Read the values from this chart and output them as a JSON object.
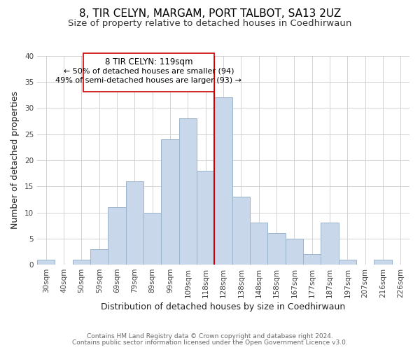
{
  "title": "8, TIR CELYN, MARGAM, PORT TALBOT, SA13 2UZ",
  "subtitle": "Size of property relative to detached houses in Coedhirwaun",
  "xlabel": "Distribution of detached houses by size in Coedhirwaun",
  "ylabel": "Number of detached properties",
  "footer_line1": "Contains HM Land Registry data © Crown copyright and database right 2024.",
  "footer_line2": "Contains public sector information licensed under the Open Government Licence v3.0.",
  "bar_labels": [
    "30sqm",
    "40sqm",
    "50sqm",
    "59sqm",
    "69sqm",
    "79sqm",
    "89sqm",
    "99sqm",
    "109sqm",
    "118sqm",
    "128sqm",
    "138sqm",
    "148sqm",
    "158sqm",
    "167sqm",
    "177sqm",
    "187sqm",
    "197sqm",
    "207sqm",
    "216sqm",
    "226sqm"
  ],
  "bar_values": [
    1,
    0,
    1,
    3,
    11,
    16,
    10,
    24,
    28,
    18,
    32,
    13,
    8,
    6,
    5,
    2,
    8,
    1,
    0,
    1,
    0
  ],
  "bar_color": "#c8d8ea",
  "bar_edge_color": "#9ab4cc",
  "vline_x_index": 9.5,
  "vline_color": "#cc0000",
  "annotation_title": "8 TIR CELYN: 119sqm",
  "annotation_line1": "← 50% of detached houses are smaller (94)",
  "annotation_line2": "49% of semi-detached houses are larger (93) →",
  "annotation_box_color": "#ffffff",
  "annotation_box_edge": "#cc0000",
  "ylim": [
    0,
    40
  ],
  "yticks": [
    0,
    5,
    10,
    15,
    20,
    25,
    30,
    35,
    40
  ],
  "title_fontsize": 11,
  "subtitle_fontsize": 9.5,
  "xlabel_fontsize": 9,
  "ylabel_fontsize": 9,
  "tick_fontsize": 7.5,
  "footer_fontsize": 6.5,
  "ann_fontsize_title": 8.5,
  "ann_fontsize_lines": 8.0
}
